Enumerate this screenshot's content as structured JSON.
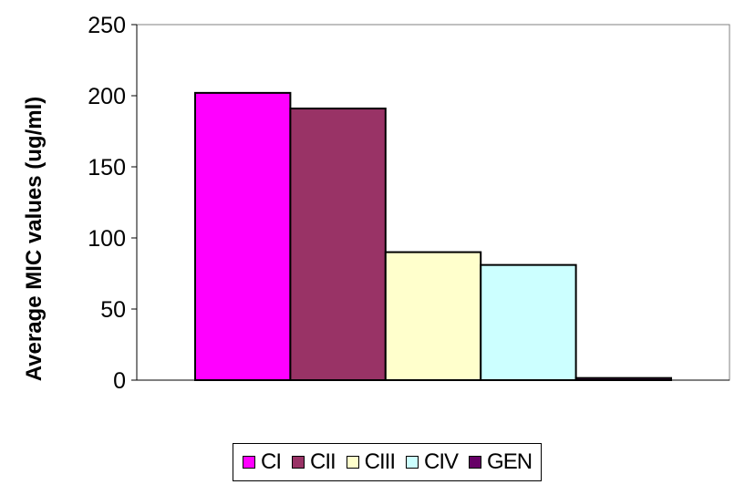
{
  "chart_data": {
    "type": "bar",
    "title": "",
    "xlabel": "",
    "ylabel": "Average MIC values (ug/ml)",
    "ylim": [
      0,
      250
    ],
    "yticks": [
      0,
      50,
      100,
      150,
      200,
      250
    ],
    "grid": false,
    "legend_position": "bottom",
    "series": [
      {
        "name": "CI",
        "values": [
          202
        ],
        "color": "#ff00ff"
      },
      {
        "name": "CII",
        "values": [
          191
        ],
        "color": "#993366"
      },
      {
        "name": "CIII",
        "values": [
          90
        ],
        "color": "#ffffcc"
      },
      {
        "name": "CIV",
        "values": [
          81
        ],
        "color": "#ccffff"
      },
      {
        "name": "GEN",
        "values": [
          1.5
        ],
        "color": "#660066"
      }
    ]
  }
}
